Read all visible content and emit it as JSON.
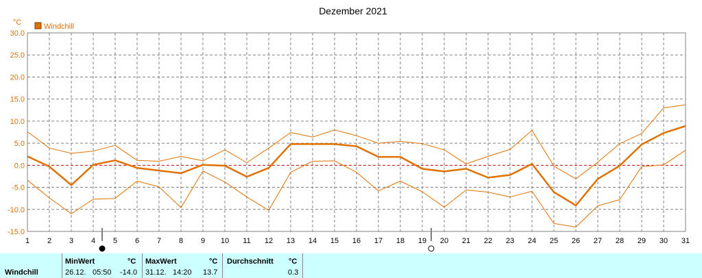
{
  "chart_data": {
    "type": "line",
    "title": "Dezember 2021",
    "unit": "°C",
    "legend": [
      "Windchill"
    ],
    "x": [
      1,
      2,
      3,
      4,
      5,
      6,
      7,
      8,
      9,
      10,
      11,
      12,
      13,
      14,
      15,
      16,
      17,
      18,
      19,
      20,
      21,
      22,
      23,
      24,
      25,
      26,
      27,
      28,
      29,
      30,
      31
    ],
    "ylim": [
      -15,
      30
    ],
    "yticks": [
      "30.0",
      "25.0",
      "20.0",
      "15.0",
      "10.0",
      "5.0",
      "0.0",
      "-5.0",
      "-10.0",
      "-15.0"
    ],
    "grid": true,
    "series": [
      {
        "name": "Windchill",
        "role": "max",
        "values": [
          7.6,
          3.9,
          2.7,
          3.2,
          4.5,
          1.1,
          0.9,
          2.0,
          1.0,
          3.5,
          0.6,
          3.9,
          7.4,
          6.4,
          8.0,
          6.7,
          5.0,
          5.4,
          4.9,
          3.5,
          0.3,
          2.0,
          3.6,
          7.9,
          -0.2,
          -3.1,
          0.7,
          4.9,
          7.2,
          13.0,
          13.7
        ]
      },
      {
        "name": "Windchill",
        "role": "avg",
        "values": [
          2.0,
          -0.3,
          -4.5,
          0.1,
          1.1,
          -0.6,
          -1.2,
          -1.8,
          0.1,
          -0.1,
          -2.6,
          -0.6,
          4.8,
          4.8,
          4.8,
          4.3,
          1.9,
          1.9,
          -0.8,
          -1.4,
          -0.8,
          -2.8,
          -2.2,
          0.3,
          -6.1,
          -9.1,
          -3.1,
          -0.1,
          4.7,
          7.3,
          8.9
        ]
      },
      {
        "name": "Windchill",
        "role": "min",
        "values": [
          -3.4,
          -7.4,
          -11.0,
          -7.7,
          -7.5,
          -3.6,
          -4.9,
          -9.6,
          -1.3,
          -3.8,
          -7.2,
          -10.2,
          -1.6,
          0.9,
          1.0,
          -1.6,
          -5.8,
          -3.6,
          -6.0,
          -9.5,
          -5.6,
          -6.1,
          -7.2,
          -5.9,
          -13.2,
          -14.0,
          -9.2,
          -7.8,
          -0.3,
          0.1,
          3.4
        ]
      }
    ],
    "moon_markers": [
      {
        "day": 4,
        "symbol": "●"
      },
      {
        "day": 19,
        "symbol": "○"
      }
    ]
  },
  "footer": {
    "label": "Windchill",
    "min": {
      "header": "MinWert",
      "unit": "°C",
      "date": "26.12.",
      "time": "05:50",
      "value": "-14.0"
    },
    "max": {
      "header": "MaxWert",
      "unit": "°C",
      "date": "31.12.",
      "time": "14:20",
      "value": "13.7"
    },
    "avg": {
      "header": "Durchschnitt",
      "unit": "°C",
      "value": "0.3"
    }
  },
  "colors": {
    "line": "#e07000",
    "grid": "#808080",
    "zero": "#cc0000",
    "footer_bg": "#ccffff"
  }
}
